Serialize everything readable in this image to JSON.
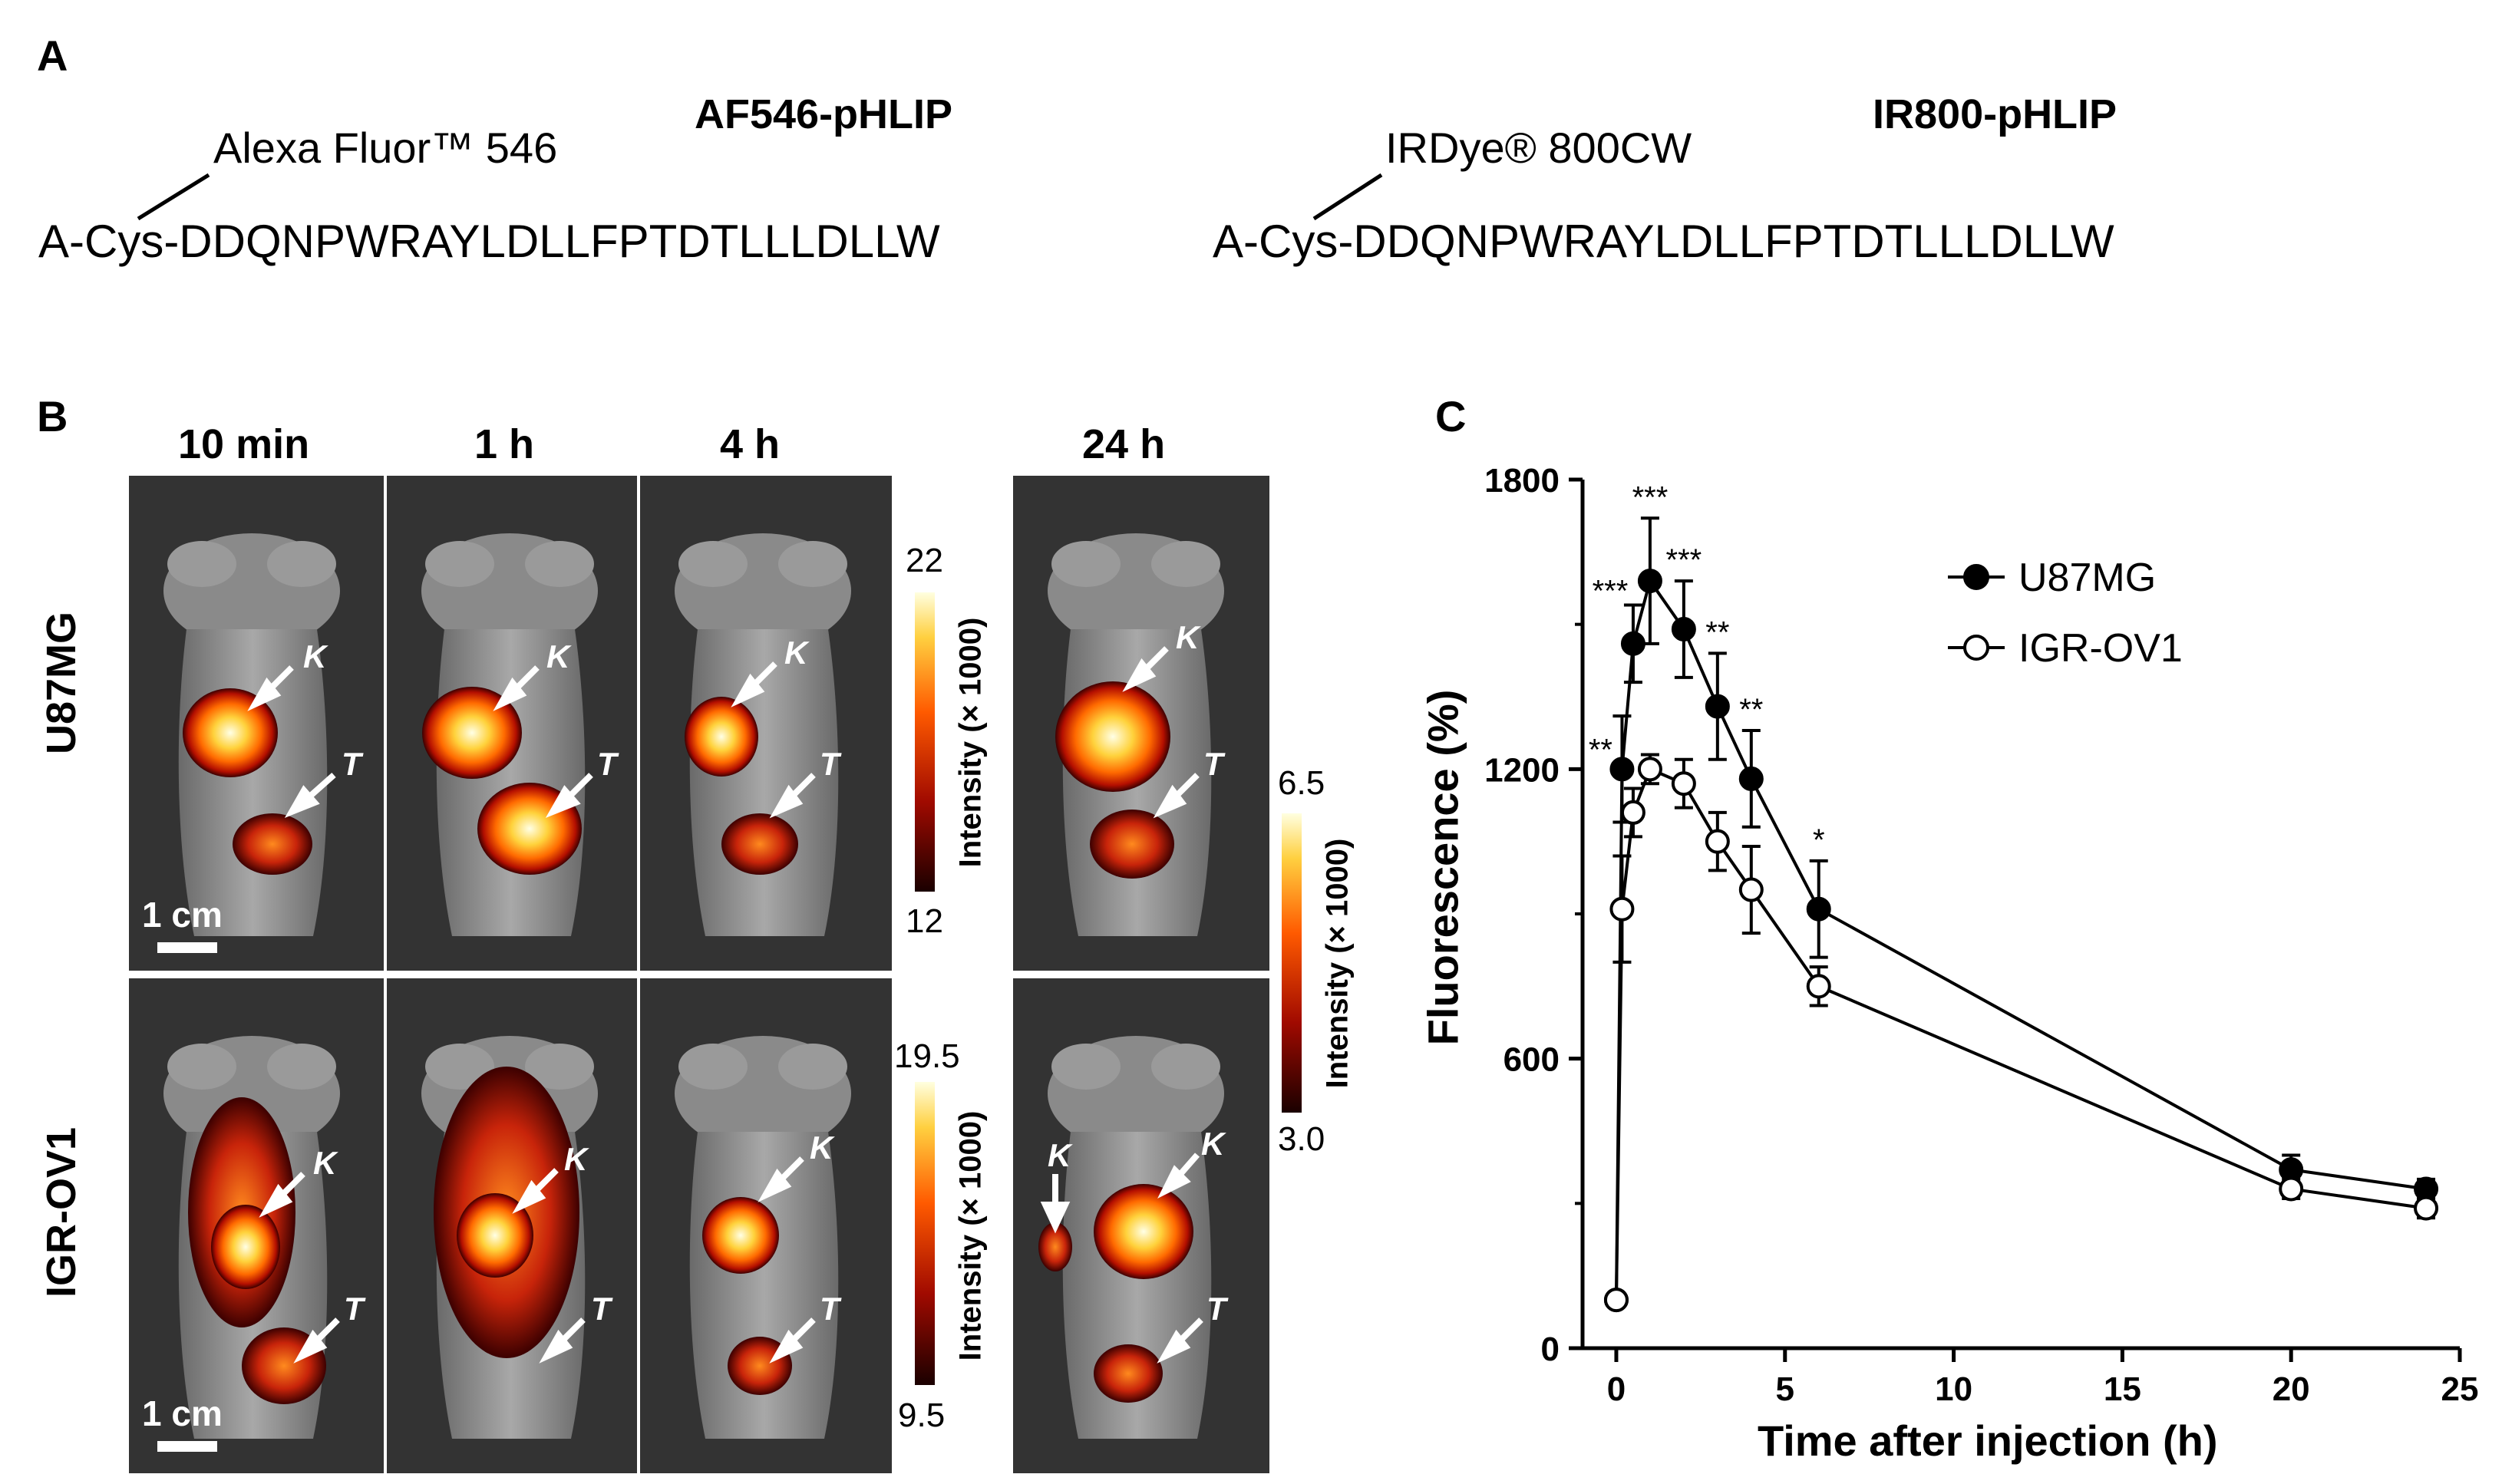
{
  "panels": {
    "a": "A",
    "b": "B",
    "c": "C"
  },
  "panel_a": {
    "left": {
      "peptide": "AF546-pHLIP",
      "dye": "Alexa Fluor™ 546",
      "sequence": "A-Cys-DDQNPWRAYLDLLFPTDTLLLDLLW"
    },
    "right": {
      "peptide": "IR800-pHLIP",
      "dye": "IRDye® 800CW",
      "sequence": "A-Cys-DDQNPWRAYLDLLFPTDTLLLDLLW"
    }
  },
  "panel_b": {
    "timepoints": [
      "10 min",
      "1 h",
      "4 h",
      "24 h"
    ],
    "rows": [
      "U87MG",
      "IGR-OV1"
    ],
    "scale_bar": "1 cm",
    "kidney_label": "K",
    "tumor_label": "T",
    "colorbars": [
      {
        "title": "Intensity (× 1000)",
        "max": "22",
        "min": "12"
      },
      {
        "title": "Intensity (× 1000)",
        "max": "19.5",
        "min": "9.5"
      },
      {
        "title": "Intensity (× 1000)",
        "max": "6.5",
        "min": "3.0"
      }
    ]
  },
  "chart_data": {
    "type": "line",
    "xlabel": "Time after injection (h)",
    "ylabel": "Fluorescence (%)",
    "xlim": [
      -1,
      25
    ],
    "ylim": [
      0,
      1800
    ],
    "xticks": [
      0,
      5,
      10,
      15,
      20,
      25
    ],
    "yticks": [
      0,
      600,
      1200,
      1800
    ],
    "series": [
      {
        "name": "U87MG",
        "marker": "filled-circle",
        "x": [
          0,
          0.17,
          0.5,
          1,
          2,
          3,
          4,
          6,
          20,
          24
        ],
        "y": [
          100,
          1200,
          1460,
          1590,
          1490,
          1330,
          1180,
          910,
          370,
          330
        ],
        "err": [
          0,
          110,
          80,
          130,
          100,
          110,
          100,
          100,
          30,
          20
        ]
      },
      {
        "name": "IGR-OV1",
        "marker": "open-circle",
        "x": [
          0,
          0.17,
          0.5,
          1,
          2,
          3,
          4,
          6,
          20,
          24
        ],
        "y": [
          100,
          910,
          1110,
          1200,
          1170,
          1050,
          950,
          750,
          330,
          290
        ],
        "err": [
          0,
          110,
          50,
          30,
          50,
          60,
          90,
          40,
          20,
          20
        ]
      }
    ],
    "significance": [
      "**",
      "***",
      "***",
      "***",
      "**",
      "**",
      "*"
    ]
  }
}
